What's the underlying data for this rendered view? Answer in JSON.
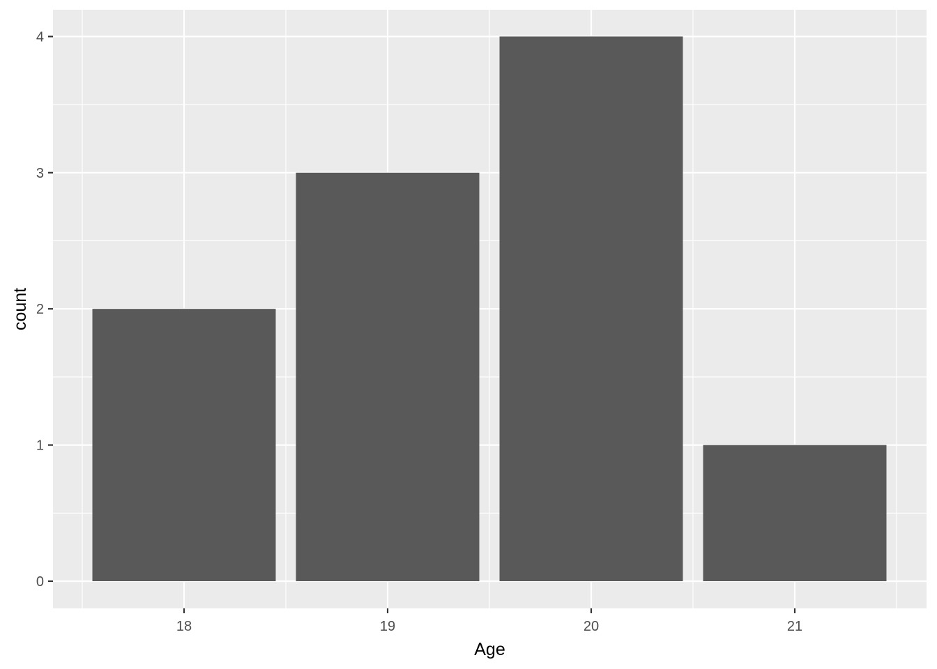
{
  "chart_data": {
    "type": "bar",
    "categories": [
      "18",
      "19",
      "20",
      "21"
    ],
    "values": [
      2,
      3,
      4,
      1
    ],
    "title": "",
    "xlabel": "Age",
    "ylabel": "count",
    "ylim": [
      0,
      4
    ],
    "y_ticks": [
      0,
      1,
      2,
      3,
      4
    ],
    "y_tick_labels": [
      "0",
      "1",
      "2",
      "3",
      "4"
    ],
    "grid": true,
    "legend": "none",
    "colors": {
      "bar": "#595959",
      "panel_background": "#ebebeb",
      "grid": "#ffffff",
      "tick_text": "#4d4d4d",
      "axis_title": "#000000",
      "tick_mark": "#333333"
    }
  }
}
